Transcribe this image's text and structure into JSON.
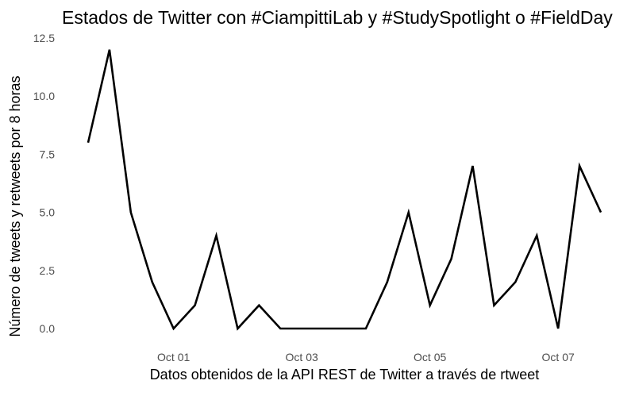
{
  "chart_data": {
    "type": "line",
    "title": "Estados de Twitter con #CiampittiLab y #StudySpotlight o #FieldDay",
    "xlabel": "Datos obtenidos de la API REST de Twitter a través de rtweet",
    "ylabel": "Número de tweets y retweets por 8 horas",
    "x_ticks": [
      "Oct 01",
      "Oct 03",
      "Oct 05",
      "Oct 07"
    ],
    "y_ticks": [
      "0.0",
      "2.5",
      "5.0",
      "7.5",
      "10.0",
      "12.5"
    ],
    "ylim": [
      0,
      12.5
    ],
    "grid": false,
    "legend": "none",
    "line_color": "#000000",
    "series": [
      {
        "x": [
          "2019-09-29T16:00",
          "2019-09-30T00:00",
          "2019-09-30T08:00",
          "2019-09-30T16:00",
          "2019-10-01T00:00",
          "2019-10-01T08:00",
          "2019-10-01T16:00",
          "2019-10-02T00:00",
          "2019-10-02T08:00",
          "2019-10-02T16:00",
          "2019-10-03T00:00",
          "2019-10-03T08:00",
          "2019-10-03T16:00",
          "2019-10-04T00:00",
          "2019-10-04T08:00",
          "2019-10-04T16:00",
          "2019-10-05T00:00",
          "2019-10-05T08:00",
          "2019-10-05T16:00",
          "2019-10-06T00:00",
          "2019-10-06T08:00",
          "2019-10-06T16:00",
          "2019-10-07T00:00",
          "2019-10-07T08:00",
          "2019-10-07T16:00"
        ],
        "values": [
          8,
          12,
          5,
          2,
          0,
          1,
          4,
          0,
          1,
          0,
          0,
          0,
          0,
          0,
          2,
          5,
          1,
          3,
          7,
          1,
          2,
          4,
          0,
          7,
          5
        ]
      }
    ]
  }
}
